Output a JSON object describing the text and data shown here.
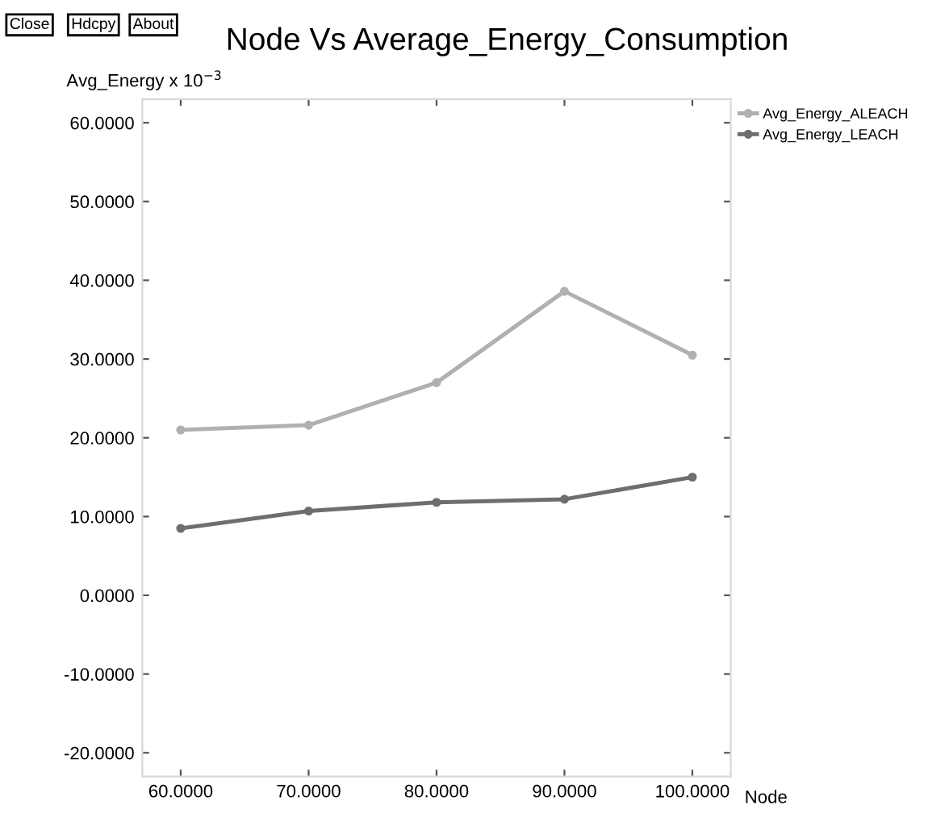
{
  "chart_data": {
    "type": "line",
    "title": "Node Vs Average_Energy_Consumption",
    "xlabel": "Node",
    "ylabel": "Avg_Energy x 10$^{−3}$",
    "annotations": [
      "Close",
      "Hdcpy",
      "About"
    ],
    "x": [
      60,
      70,
      80,
      90,
      100
    ],
    "series": [
      {
        "name": "Avg_Energy_ALEACH",
        "color": "#b0b0b0",
        "values": [
          21.0,
          21.6,
          27.0,
          38.6,
          30.5
        ]
      },
      {
        "name": "Avg_Energy_LEACH",
        "color": "#6e6e6e",
        "values": [
          8.5,
          10.7,
          11.8,
          12.2,
          15.0
        ]
      }
    ],
    "xlim": [
      57,
      103
    ],
    "ylim": [
      -23,
      63
    ],
    "xticks": [
      {
        "value": 60,
        "label": "60.0000"
      },
      {
        "value": 70,
        "label": "70.0000"
      },
      {
        "value": 80,
        "label": "80.0000"
      },
      {
        "value": 90,
        "label": "90.0000"
      },
      {
        "value": 100,
        "label": "100.0000"
      }
    ],
    "yticks": [
      {
        "value": -20,
        "label": "-20.0000"
      },
      {
        "value": -10,
        "label": "-10.0000"
      },
      {
        "value": 0,
        "label": "0.0000"
      },
      {
        "value": 10,
        "label": "10.0000"
      },
      {
        "value": 20,
        "label": "20.0000"
      },
      {
        "value": 30,
        "label": "30.0000"
      },
      {
        "value": 40,
        "label": "40.0000"
      },
      {
        "value": 50,
        "label": "50.0000"
      },
      {
        "value": 60,
        "label": "60.0000"
      }
    ],
    "grid": false,
    "legend": "top right",
    "marker": "circle",
    "line_style": "solid"
  }
}
